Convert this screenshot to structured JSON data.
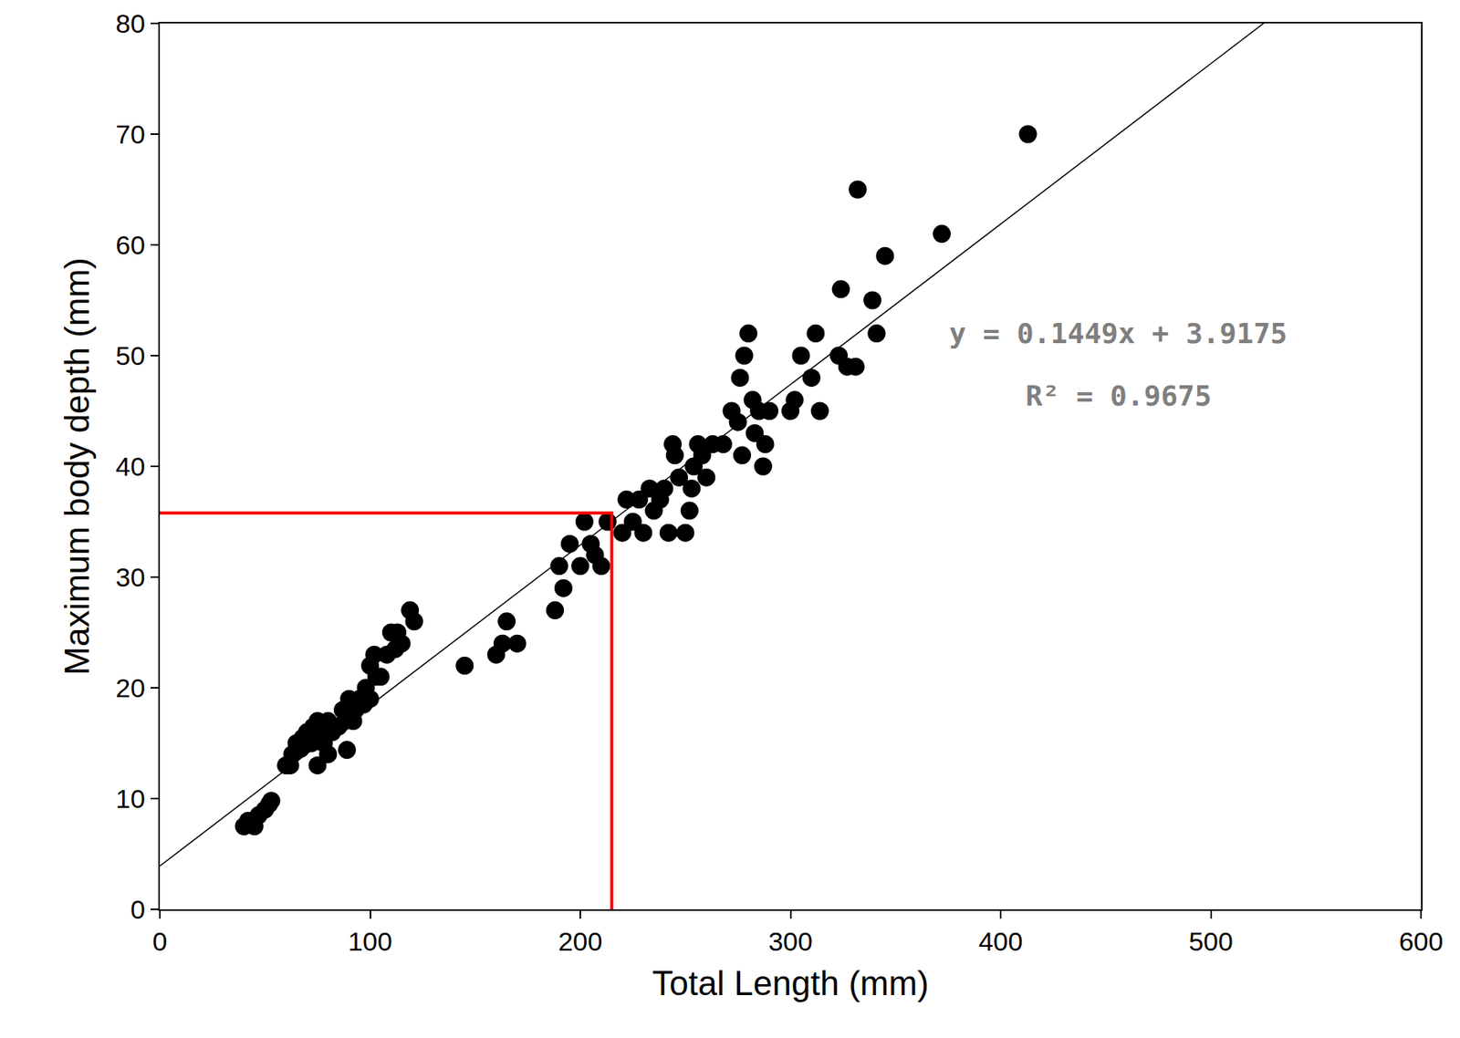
{
  "chart_data": {
    "type": "scatter",
    "x_label": "Total Length (mm)",
    "y_label": "Maximum body depth (mm)",
    "color": "#000000",
    "marker": "circle",
    "grid": false,
    "xlim": [
      0,
      600
    ],
    "ylim": [
      0,
      80
    ],
    "xticks": [
      0,
      100,
      200,
      300,
      400,
      500,
      600
    ],
    "yticks": [
      0,
      10,
      20,
      30,
      40,
      50,
      60,
      70,
      80
    ],
    "x": [
      40,
      42,
      45,
      47,
      50,
      52,
      53,
      60,
      62,
      63,
      65,
      67,
      68,
      70,
      72,
      73,
      75,
      75,
      77,
      78,
      80,
      80,
      82,
      85,
      87,
      88,
      89,
      90,
      92,
      93,
      95,
      97,
      98,
      100,
      100,
      102,
      103,
      105,
      108,
      110,
      112,
      113,
      115,
      119,
      121,
      145,
      160,
      163,
      165,
      170,
      188,
      190,
      192,
      195,
      200,
      202,
      205,
      207,
      210,
      213,
      220,
      222,
      225,
      228,
      230,
      233,
      235,
      238,
      240,
      242,
      244,
      245,
      247,
      250,
      252,
      253,
      254,
      256,
      258,
      260,
      263,
      268,
      272,
      275,
      276,
      277,
      278,
      280,
      282,
      283,
      285,
      287,
      288,
      290,
      300,
      302,
      305,
      310,
      312,
      314,
      323,
      324,
      327,
      331,
      332,
      339,
      341,
      345,
      372,
      413
    ],
    "values": [
      7.5,
      8,
      7.5,
      8.5,
      9,
      9.5,
      9.8,
      13,
      13,
      14,
      15,
      14.5,
      15.5,
      16,
      15,
      16.5,
      17,
      13,
      16,
      15,
      14,
      17,
      16,
      16.5,
      18,
      17,
      14.4,
      19,
      17,
      18,
      19,
      18.5,
      20,
      22,
      19,
      23,
      21,
      21,
      23,
      25,
      23.5,
      25,
      24,
      27,
      26,
      22,
      23,
      24,
      26,
      24,
      27,
      31,
      29,
      33,
      31,
      35,
      33,
      32,
      31,
      35,
      34,
      37,
      35,
      37,
      34,
      38,
      36,
      37,
      38,
      34,
      42,
      41,
      39,
      34,
      36,
      38,
      40,
      42,
      41,
      39,
      42,
      42,
      45,
      44,
      48,
      41,
      50,
      52,
      46,
      43,
      45,
      40,
      42,
      45,
      45,
      46,
      50,
      48,
      52,
      45,
      50,
      56,
      49,
      49,
      65,
      55,
      52,
      59,
      61,
      70
    ],
    "fit": {
      "slope": 0.1449,
      "intercept": 3.9175,
      "color": "#000000"
    },
    "annotations": [
      "y = 0.1449x + 3.9175",
      "R² = 0.9675"
    ],
    "reference": {
      "x": 215,
      "y": 35.8,
      "color": "#ff0000"
    }
  }
}
